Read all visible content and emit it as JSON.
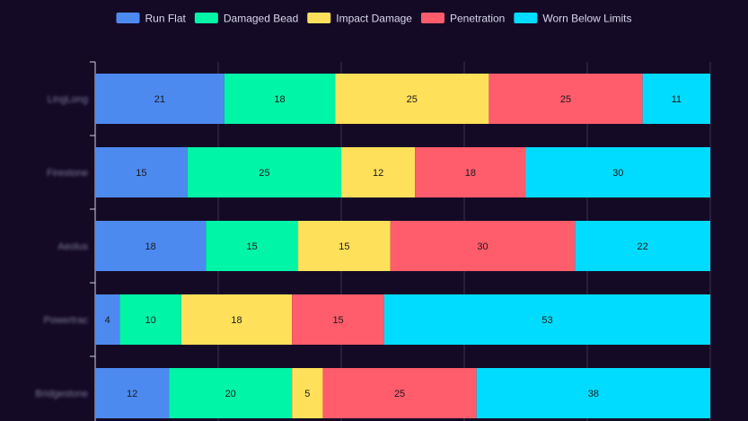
{
  "chart_data": {
    "type": "bar",
    "orientation": "horizontal",
    "stacked": true,
    "categories": [
      "LingLong",
      "Firestone",
      "Aeolus",
      "Powertrac",
      "Bridgestone"
    ],
    "series": [
      {
        "name": "Run Flat",
        "color": "#4d8af0",
        "values": [
          21,
          15,
          18,
          4,
          12
        ]
      },
      {
        "name": "Damaged Bead",
        "color": "#00f5a6",
        "values": [
          18,
          25,
          15,
          10,
          20
        ]
      },
      {
        "name": "Impact Damage",
        "color": "#ffe05a",
        "values": [
          25,
          12,
          15,
          18,
          5
        ]
      },
      {
        "name": "Penetration",
        "color": "#ff5c6c",
        "values": [
          25,
          18,
          30,
          15,
          25
        ]
      },
      {
        "name": "Worn Below Limits",
        "color": "#00dcff",
        "values": [
          11,
          30,
          22,
          53,
          38
        ]
      }
    ],
    "xlim": [
      0,
      100
    ],
    "grid": true,
    "legend": "top-center"
  }
}
